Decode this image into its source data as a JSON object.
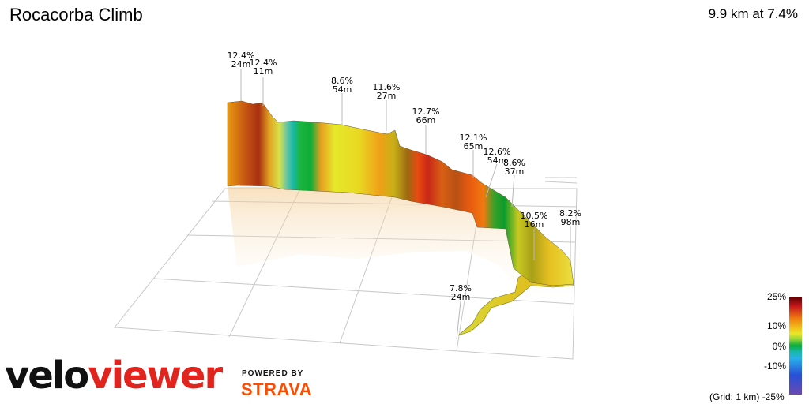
{
  "header": {
    "title": "Rocacorba Climb",
    "summary": "9.9 km at 7.4%"
  },
  "branding": {
    "logo_a": "velo",
    "logo_b": "viewer",
    "powered_by": "POWERED BY",
    "partner": "STRAVA"
  },
  "legend": {
    "ticks": [
      "25%",
      "10%",
      "0%",
      "-10%",
      "-25%"
    ],
    "grid_note": "(Grid: 1 km)"
  },
  "colors": {
    "red": "#c8181c",
    "orange": "#f07a10",
    "yellow": "#e6e82a",
    "green": "#0cac3a",
    "teal": "#18b8a8",
    "logo_red": "#e2241f",
    "strava_orange": "#fc4c02"
  },
  "chart_data": {
    "type": "area",
    "style": "3d-ribbon",
    "title": "Rocacorba Climb",
    "grid": true,
    "gradient_scale": [
      -25,
      25
    ],
    "annotations": [
      {
        "gradient": "12.4%",
        "length": "24m"
      },
      {
        "gradient": "12.4%",
        "length": "11m"
      },
      {
        "gradient": "8.6%",
        "length": "54m"
      },
      {
        "gradient": "11.6%",
        "length": "27m"
      },
      {
        "gradient": "12.7%",
        "length": "66m"
      },
      {
        "gradient": "12.1%",
        "length": "65m"
      },
      {
        "gradient": "12.6%",
        "length": "54m"
      },
      {
        "gradient": "8.6%",
        "length": "37m"
      },
      {
        "gradient": "10.5%",
        "length": "16m"
      },
      {
        "gradient": "8.2%",
        "length": "98m"
      },
      {
        "gradient": "7.8%",
        "length": "24m"
      }
    ]
  }
}
